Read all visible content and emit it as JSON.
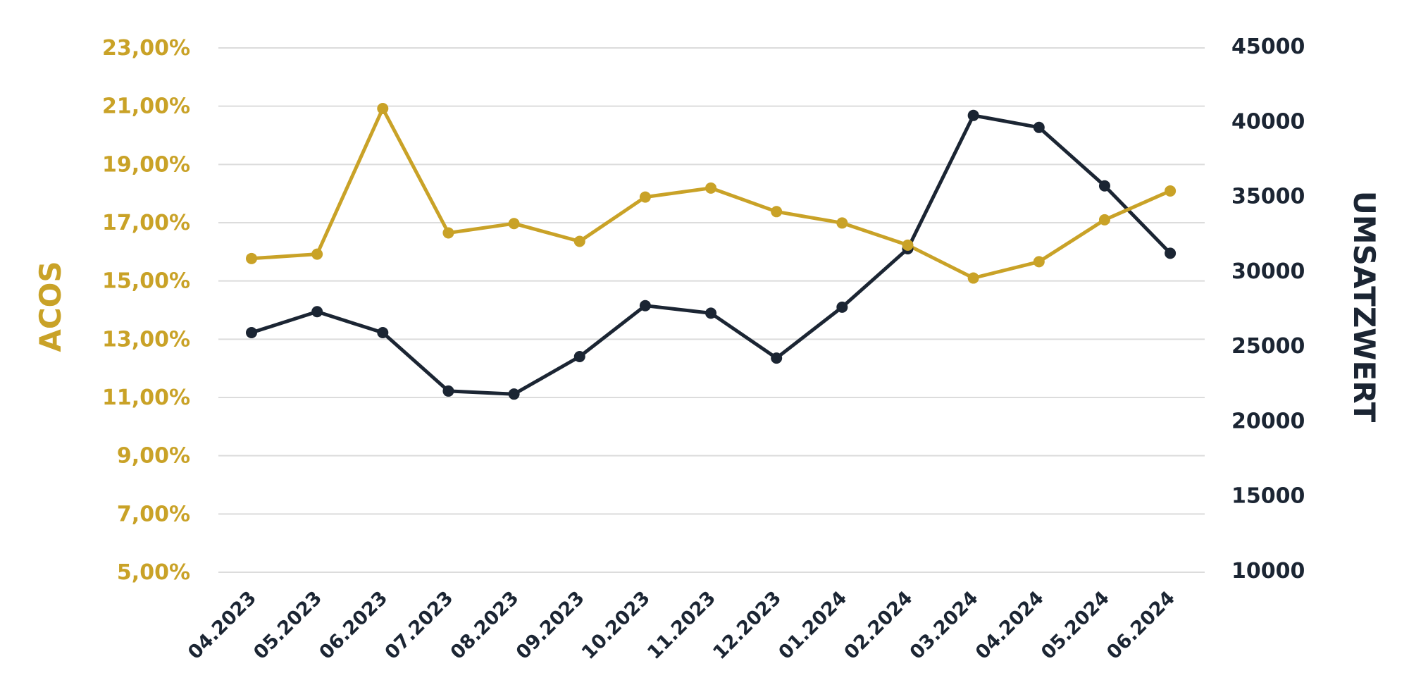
{
  "chart_data": {
    "type": "line",
    "categories": [
      "04.2023",
      "05.2023",
      "06.2023",
      "07.2023",
      "08.2023",
      "09.2023",
      "10.2023",
      "11.2023",
      "12.2023",
      "01.2024",
      "02.2024",
      "03.2024",
      "04.2024",
      "05.2024",
      "06.2024"
    ],
    "series": [
      {
        "axis": "left",
        "color": "#c9a227",
        "values": [
          15.77,
          15.92,
          20.92,
          16.65,
          16.97,
          16.36,
          17.88,
          18.19,
          17.38,
          16.99,
          16.23,
          15.1,
          15.66,
          17.1,
          18.09
        ]
      },
      {
        "axis": "right",
        "color": "#1b2533",
        "values": [
          25900,
          27300,
          25900,
          22000,
          21800,
          24300,
          27700,
          27200,
          24200,
          27600,
          31500,
          40400,
          39600,
          35700,
          31200
        ]
      }
    ],
    "ylabel": "ACOS",
    "y2label": "UMSATZWERT",
    "ylim": [
      5,
      23
    ],
    "y2lim": [
      10000,
      45000
    ],
    "yticks": [
      "5,00%",
      "7,00%",
      "9,00%",
      "11,00%",
      "13,00%",
      "15,00%",
      "17,00%",
      "19,00%",
      "21,00%",
      "23,00%"
    ],
    "y2ticks": [
      "10000",
      "15000",
      "20000",
      "25000",
      "30000",
      "35000",
      "40000",
      "45000"
    ],
    "grid": true,
    "colors": {
      "acos": "#c9a227",
      "umsatz": "#1b2533",
      "grid": "#dcdcdc"
    }
  }
}
